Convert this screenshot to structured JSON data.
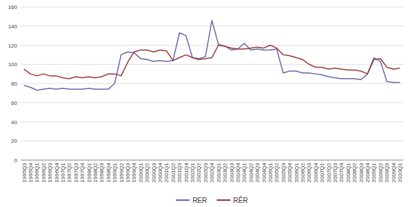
{
  "chart_data": {
    "type": "line",
    "categories": [
      "1995Q3",
      "1995Q4",
      "1996Q1",
      "1996Q2",
      "1996Q3",
      "1996Q4",
      "1997Q1",
      "1997Q2",
      "1997Q3",
      "1997Q4",
      "1998Q1",
      "1998Q2",
      "1998Q3",
      "1998Q4",
      "1999Q1",
      "1999Q2",
      "1999Q3",
      "1999Q4",
      "2000Q1",
      "2000Q2",
      "2000Q3",
      "2000Q4",
      "2001Q1",
      "2001Q2",
      "2001Q3",
      "2001Q4",
      "2002Q1",
      "2002Q2",
      "2002Q3",
      "2002Q4",
      "2003Q1",
      "2003Q2",
      "2003Q3",
      "2003Q4",
      "2004Q1",
      "2004Q2",
      "2004Q3",
      "2004Q4",
      "2005Q1",
      "2005Q2",
      "2005Q3",
      "2005Q4",
      "2006Q1",
      "2006Q2",
      "2006Q3",
      "2006Q4",
      "2007Q1",
      "2007Q2",
      "2007Q3",
      "2007Q4",
      "2008Q1",
      "2008Q2",
      "2008Q3",
      "2008Q4",
      "2009Q1",
      "2009Q2",
      "2009Q3",
      "2009Q4",
      "2010Q1"
    ],
    "series": [
      {
        "name": "RER",
        "color": "#6666aa",
        "values": [
          78,
          76,
          73,
          74,
          75,
          74,
          75,
          74,
          74,
          74,
          75,
          74,
          74,
          74,
          80,
          110,
          113,
          112,
          106,
          105,
          103,
          104,
          103,
          104,
          133,
          130,
          107,
          106,
          108,
          146,
          121,
          119,
          115,
          116,
          122,
          115,
          116,
          115,
          115,
          116,
          91,
          93,
          93,
          91,
          91,
          90,
          89,
          87,
          86,
          85,
          85,
          85,
          84,
          90,
          107,
          103,
          82,
          81,
          81
        ]
      },
      {
        "name": "RÊR",
        "color": "#993333",
        "values": [
          95,
          90,
          88,
          90,
          88,
          88,
          86,
          85,
          87,
          86,
          87,
          86,
          87,
          90,
          90,
          88,
          102,
          113,
          115,
          115,
          113,
          115,
          114,
          104,
          107,
          110,
          107,
          105,
          106,
          107,
          120,
          119,
          117,
          116,
          116,
          117,
          118,
          117,
          120,
          117,
          110,
          109,
          107,
          105,
          100,
          97,
          97,
          95,
          96,
          95,
          94,
          94,
          93,
          90,
          105,
          106,
          97,
          95,
          96
        ]
      }
    ],
    "ylim": [
      0,
      160
    ],
    "yticks": [
      0,
      20,
      40,
      60,
      80,
      100,
      120,
      140,
      160
    ],
    "grid": true,
    "legend": "bottom"
  }
}
